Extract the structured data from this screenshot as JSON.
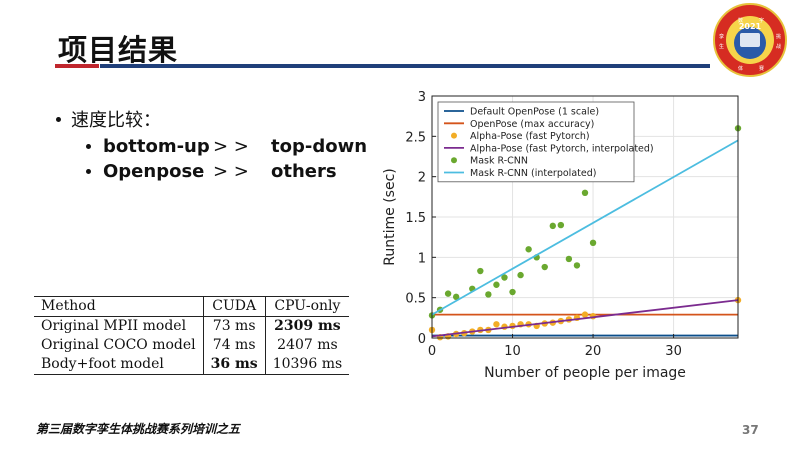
{
  "slide": {
    "title": "项目结果",
    "page_number": "37",
    "footer": "第三届数字孪生体挑战赛系列培训之五",
    "accent_red": "#c0262d",
    "accent_blue": "#1f3f7a"
  },
  "logo": {
    "year": "2021",
    "c1": "数",
    "c2": "字",
    "c3": "孪",
    "c4": "生",
    "c5": "体",
    "c6": "挑",
    "c7": "战",
    "c8": "赛"
  },
  "bullets": {
    "main": "速度比较：",
    "items": [
      {
        "left": "bottom-up",
        "op": "> >",
        "right": "top-down"
      },
      {
        "left": "Openpose",
        "op": "> >",
        "right": "others"
      }
    ]
  },
  "table": {
    "headers": [
      "Method",
      "CUDA",
      "CPU-only"
    ],
    "rows": [
      {
        "method": "Original MPII model",
        "cuda": "73 ms",
        "cpu": "2309 ms",
        "bold": "cpu"
      },
      {
        "method": "Original COCO model",
        "cuda": "74 ms",
        "cpu": "2407 ms",
        "bold": ""
      },
      {
        "method": "Body+foot model",
        "cuda": "36 ms",
        "cpu": "10396 ms",
        "bold": "cuda"
      }
    ]
  },
  "chart_data": {
    "type": "line",
    "xlabel": "Number of people per image",
    "ylabel": "Runtime (sec)",
    "xlim": [
      0,
      38
    ],
    "ylim": [
      0,
      3
    ],
    "xticks": [
      "0",
      "10",
      "20",
      "30"
    ],
    "yticks": [
      "0",
      "0.5",
      "1",
      "1.5",
      "2",
      "2.5",
      "3"
    ],
    "grid": true,
    "legend_position": "top-left",
    "series": [
      {
        "name": "Default OpenPose (1 scale)",
        "kind": "line",
        "color": "#0d4f8b",
        "points": [
          [
            0,
            0.03
          ],
          [
            38,
            0.03
          ]
        ]
      },
      {
        "name": "OpenPose (max accuracy)",
        "kind": "line",
        "color": "#d4541b",
        "points": [
          [
            0,
            0.29
          ],
          [
            38,
            0.29
          ]
        ]
      },
      {
        "name": "Alpha-Pose (fast Pytorch)",
        "kind": "scatter",
        "color": "#f2ad26",
        "points": [
          [
            0,
            0.1
          ],
          [
            1,
            0.01
          ],
          [
            2,
            0.02
          ],
          [
            3,
            0.05
          ],
          [
            4,
            0.06
          ],
          [
            5,
            0.08
          ],
          [
            6,
            0.1
          ],
          [
            7,
            0.1
          ],
          [
            8,
            0.17
          ],
          [
            9,
            0.14
          ],
          [
            10,
            0.15
          ],
          [
            11,
            0.17
          ],
          [
            12,
            0.17
          ],
          [
            13,
            0.15
          ],
          [
            14,
            0.18
          ],
          [
            15,
            0.19
          ],
          [
            16,
            0.21
          ],
          [
            17,
            0.23
          ],
          [
            18,
            0.25
          ],
          [
            19,
            0.29
          ],
          [
            20,
            0.27
          ],
          [
            38,
            0.47
          ]
        ]
      },
      {
        "name": "Alpha-Pose (fast Pytorch, interpolated)",
        "kind": "line",
        "color": "#7b2b8f",
        "points": [
          [
            0,
            0.02
          ],
          [
            38,
            0.47
          ]
        ]
      },
      {
        "name": "Mask R-CNN",
        "kind": "scatter",
        "color": "#6aa82f",
        "points": [
          [
            0,
            0.28
          ],
          [
            1,
            0.35
          ],
          [
            2,
            0.55
          ],
          [
            3,
            0.51
          ],
          [
            5,
            0.61
          ],
          [
            6,
            0.83
          ],
          [
            7,
            0.54
          ],
          [
            8,
            0.66
          ],
          [
            9,
            0.75
          ],
          [
            10,
            0.57
          ],
          [
            11,
            0.78
          ],
          [
            12,
            1.1
          ],
          [
            13,
            1.0
          ],
          [
            14,
            0.88
          ],
          [
            15,
            1.39
          ],
          [
            16,
            1.4
          ],
          [
            17,
            0.98
          ],
          [
            18,
            0.9
          ],
          [
            19,
            1.8
          ],
          [
            20,
            1.18
          ],
          [
            38,
            2.6
          ]
        ]
      },
      {
        "name": "Mask R-CNN (interpolated)",
        "kind": "line",
        "color": "#4cbde0",
        "points": [
          [
            0,
            0.29
          ],
          [
            38,
            2.45
          ]
        ]
      }
    ]
  }
}
